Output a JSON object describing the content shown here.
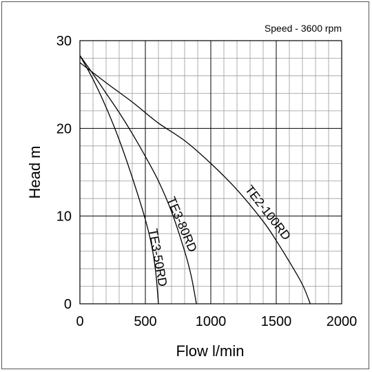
{
  "chart_data": {
    "type": "line",
    "annotation": "Speed - 3600 rpm",
    "xlabel": "Flow l/min",
    "ylabel": "Head m",
    "xlim": [
      0,
      2000
    ],
    "ylim": [
      0,
      30
    ],
    "x_major_ticks": [
      0,
      500,
      1000,
      1500,
      2000
    ],
    "y_major_ticks": [
      0,
      10,
      20,
      30
    ],
    "x_tick_labels": [
      "0",
      "500",
      "1000",
      "1500",
      "2000"
    ],
    "y_tick_labels": [
      "0",
      "10",
      "20",
      "30"
    ],
    "x_minor_step": 100,
    "y_minor_step": 2,
    "grid": true,
    "series": [
      {
        "name": "TE3-50RD",
        "x": [
          0,
          100,
          200,
          300,
          400,
          500,
          550,
          580,
          600
        ],
        "y": [
          28.3,
          25.6,
          22.4,
          18.7,
          14.4,
          9.6,
          6.5,
          3.5,
          0
        ]
      },
      {
        "name": "TE3-80RD",
        "x": [
          0,
          100,
          200,
          300,
          400,
          500,
          600,
          700,
          800,
          850,
          890
        ],
        "y": [
          28.3,
          26.2,
          24.0,
          21.8,
          19.4,
          16.8,
          14.0,
          10.5,
          6.0,
          3.2,
          0
        ]
      },
      {
        "name": "TE2-100RD",
        "x": [
          0,
          200,
          400,
          600,
          800,
          1000,
          1200,
          1400,
          1500,
          1600,
          1700,
          1760
        ],
        "y": [
          27.5,
          25.2,
          23.0,
          20.6,
          18.6,
          16.0,
          13.0,
          9.4,
          7.2,
          4.8,
          2.2,
          0
        ]
      }
    ]
  }
}
